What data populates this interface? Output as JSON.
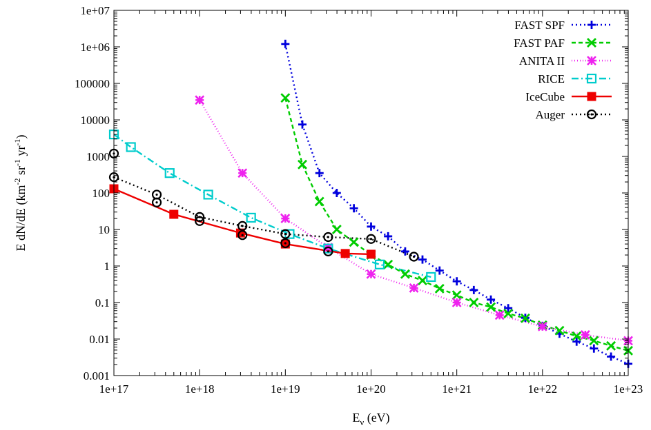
{
  "chart_data": {
    "type": "line",
    "xscale": "log",
    "yscale": "log",
    "xlim": [
      1e+17,
      1e+23
    ],
    "ylim": [
      0.001,
      10000000.0
    ],
    "xticks": [
      "1e+17",
      "1e+18",
      "1e+19",
      "1e+20",
      "1e+21",
      "1e+22",
      "1e+23"
    ],
    "yticks": [
      "0.001",
      "0.01",
      "0.1",
      "1",
      "10",
      "100",
      "1000",
      "10000",
      "100000",
      "1e+06",
      "1e+07"
    ],
    "xlabel_main": "E",
    "xlabel_sub": "ν",
    "xlabel_rest": " (eV)",
    "ylabel_parts": [
      "E dN/dE (km",
      "-2",
      " sr",
      "-1",
      " yr",
      "-1",
      ")"
    ],
    "grid": false,
    "legend_position": "top-right",
    "series": [
      {
        "name": "FAST SPF",
        "color": "#0000dd",
        "dash": "2,4",
        "marker": "plus",
        "x": [
          1e+19,
          1.58e+19,
          2.5e+19,
          3.98e+19,
          6.3e+19,
          1e+20,
          1.58e+20,
          2.5e+20,
          3.98e+20,
          6.3e+20,
          1e+21,
          1.58e+21,
          2.5e+21,
          3.98e+21,
          6.3e+21,
          1e+22,
          1.58e+22,
          2.5e+22,
          3.98e+22,
          6.3e+22,
          1e+23
        ],
        "y": [
          1200000,
          7500,
          350,
          100,
          38,
          12,
          6.5,
          2.5,
          1.5,
          0.75,
          0.38,
          0.22,
          0.12,
          0.07,
          0.038,
          0.023,
          0.014,
          0.0085,
          0.0055,
          0.0033,
          0.0021
        ]
      },
      {
        "name": "FAST PAF",
        "color": "#00cc00",
        "dash": "6,4",
        "marker": "x",
        "x": [
          1e+19,
          1.58e+19,
          2.5e+19,
          3.98e+19,
          6.3e+19,
          1e+20,
          1.58e+20,
          2.5e+20,
          3.98e+20,
          6.3e+20,
          1e+21,
          1.58e+21,
          2.5e+21,
          3.98e+21,
          6.3e+21,
          1e+22,
          1.58e+22,
          2.5e+22,
          3.98e+22,
          6.3e+22,
          1e+23
        ],
        "y": [
          40000,
          600,
          58,
          10,
          4.5,
          2.0,
          1.1,
          0.6,
          0.4,
          0.24,
          0.16,
          0.1,
          0.075,
          0.05,
          0.037,
          0.024,
          0.017,
          0.012,
          0.009,
          0.0065,
          0.0048
        ]
      },
      {
        "name": "ANITA II",
        "color": "#ee22ee",
        "dash": "1,3",
        "marker": "star",
        "x": [
          1e+18,
          3.16e+18,
          1e+19,
          3.16e+19,
          1e+20,
          3.16e+20,
          1e+21,
          3.16e+21,
          1e+22,
          3.16e+22,
          1e+23
        ],
        "y": [
          35000,
          350,
          20,
          3.2,
          0.6,
          0.25,
          0.1,
          0.045,
          0.022,
          0.013,
          0.009
        ]
      },
      {
        "name": "RICE",
        "color": "#00cccc",
        "dash": "10,4,2,4",
        "marker": "square-open",
        "x": [
          1e+17,
          1.58e+17,
          4.47e+17,
          1.26e+18,
          3.98e+18,
          1.12e+19,
          3.16e+19,
          1.26e+20,
          5e+20
        ],
        "y": [
          4000,
          1800,
          350,
          90,
          21,
          7.5,
          3.0,
          1.1,
          0.5
        ]
      },
      {
        "name": "IceCube",
        "color": "#ee0000",
        "dash": "",
        "marker": "square-filled",
        "x": [
          1e+17,
          5e+17,
          3e+18,
          1e+19,
          5e+19,
          1e+20
        ],
        "y": [
          130,
          26,
          8.0,
          4.0,
          2.2,
          2.1
        ]
      },
      {
        "name": "Auger",
        "color": "#000000",
        "dash": "2,4",
        "marker": "circle-dot",
        "x": [
          1e+17,
          3.16e+17,
          1e+18,
          3.16e+18,
          1e+19,
          3.16e+19,
          1e+20,
          3.16e+20
        ],
        "y": [
          270,
          90,
          22,
          12.5,
          7.5,
          6.2,
          5.5,
          1.8
        ],
        "extra_points": {
          "x": [
            1e+17,
            3.16e+17,
            1e+18,
            3.16e+18,
            1e+19,
            3.16e+19
          ],
          "y": [
            1200,
            55,
            17,
            7.0,
            4.2,
            2.5
          ]
        }
      }
    ]
  }
}
